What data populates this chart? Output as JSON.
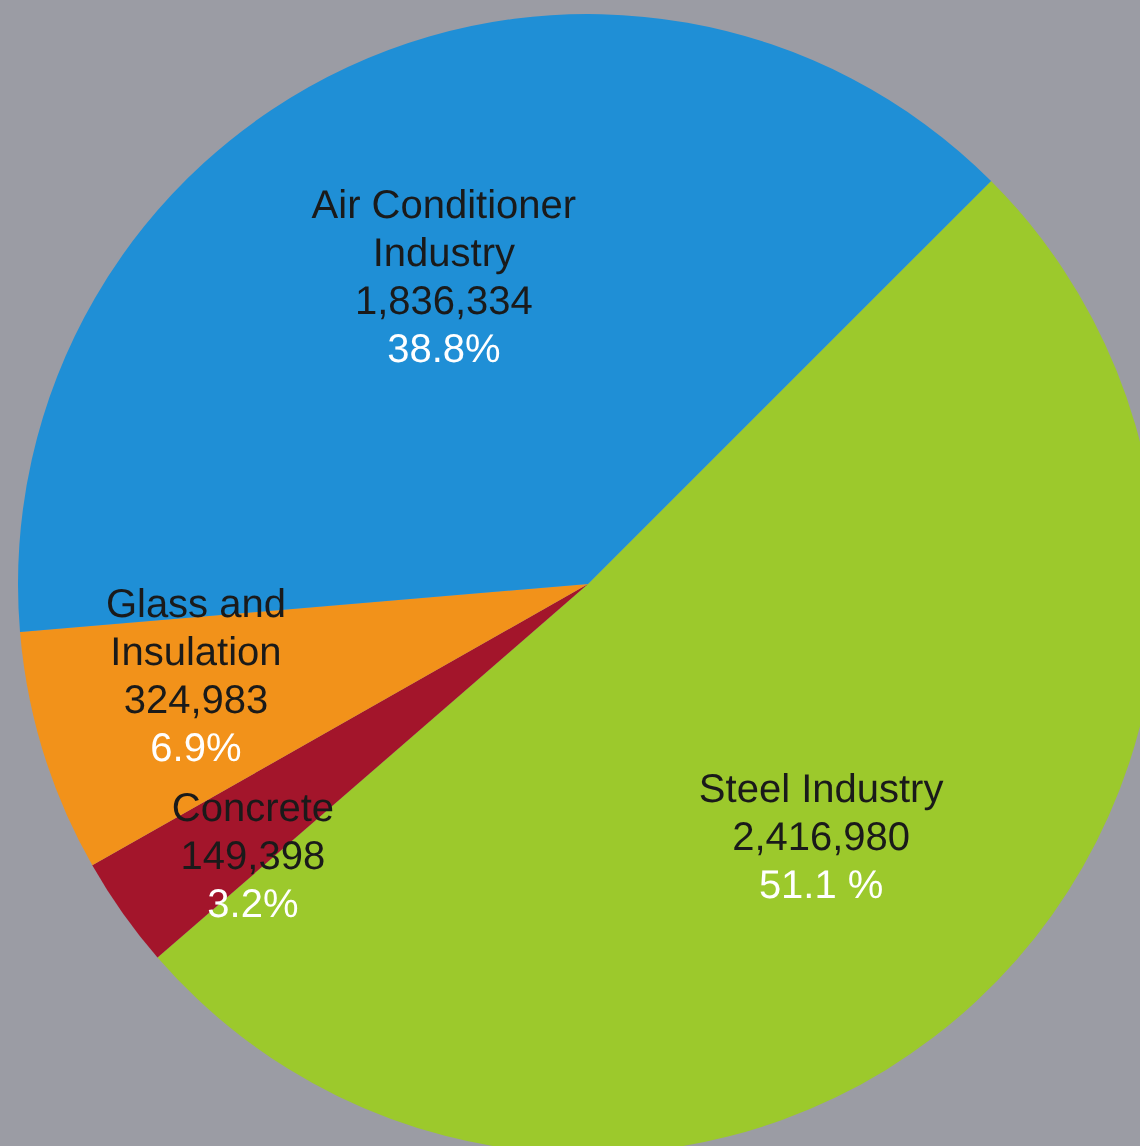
{
  "chart_data": {
    "type": "pie",
    "categories": [
      "Steel Industry",
      "Concrete",
      "Glass and Insulation",
      "Air Conditioner Industry"
    ],
    "values": [
      2416980,
      149398,
      324983,
      1836334
    ],
    "colors": [
      "#9cc92c",
      "#a3152b",
      "#f2921a",
      "#1f8fd6"
    ],
    "value_labels": [
      "2,416,980\n51.1 %",
      "149,398\n3.2%",
      "324,983\n6.9%",
      "1,836,334\n38.8%"
    ]
  }
}
